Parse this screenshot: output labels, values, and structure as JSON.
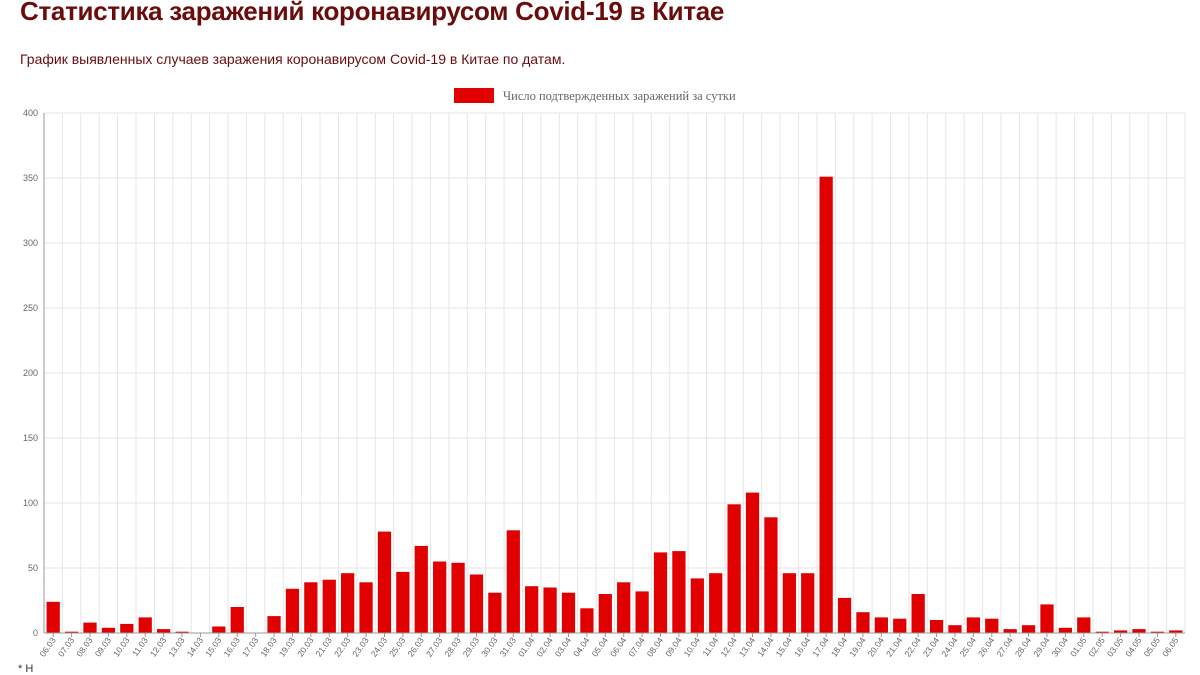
{
  "header": {
    "title": "Статистика заражений коронавирусом Covid-19 в Китае",
    "subtitle": "График выявленных случаев заражения коронавирусом Covid-19 в Китае по датам."
  },
  "footnote": "* Н",
  "colors": {
    "bar": "#e00000",
    "title": "#6b0c0c",
    "grid": "#e6e6e6",
    "axis": "#999999"
  },
  "chart_data": {
    "type": "bar",
    "title": "",
    "xlabel": "",
    "ylabel": "",
    "ylim": [
      0,
      400
    ],
    "yticks": [
      0,
      50,
      100,
      150,
      200,
      250,
      300,
      350,
      400
    ],
    "legend": {
      "label": "Число подтвержденных заражений за сутки",
      "position": "top-center"
    },
    "categories": [
      "06.03",
      "07.03",
      "08.03",
      "09.03",
      "10.03",
      "11.03",
      "12.03",
      "13.03",
      "14.03",
      "15.03",
      "16.03",
      "17.03",
      "18.03",
      "19.03",
      "20.03",
      "21.03",
      "22.03",
      "23.03",
      "24.03",
      "25.03",
      "26.03",
      "27.03",
      "28.03",
      "29.03",
      "30.03",
      "31.03",
      "01.04",
      "02.04",
      "03.04",
      "04.04",
      "05.04",
      "06.04",
      "07.04",
      "08.04",
      "09.04",
      "10.04",
      "11.04",
      "12.04",
      "13.04",
      "14.04",
      "15.04",
      "16.04",
      "17.04",
      "18.04",
      "19.04",
      "20.04",
      "21.04",
      "22.04",
      "23.04",
      "24.04",
      "25.04",
      "26.04",
      "27.04",
      "28.04",
      "29.04",
      "30.04",
      "01.05",
      "02.05",
      "03.05",
      "04.05",
      "05.05",
      "06.05"
    ],
    "series": [
      {
        "name": "Число подтвержденных заражений за сутки",
        "values": [
          24,
          1,
          8,
          4,
          7,
          12,
          3,
          1,
          0,
          5,
          20,
          0,
          13,
          34,
          39,
          41,
          46,
          39,
          78,
          47,
          67,
          55,
          54,
          45,
          31,
          79,
          36,
          35,
          31,
          19,
          30,
          39,
          32,
          62,
          63,
          42,
          46,
          99,
          108,
          89,
          46,
          46,
          351,
          27,
          16,
          12,
          11,
          30,
          10,
          6,
          12,
          11,
          3,
          6,
          22,
          4,
          12,
          1,
          2,
          3,
          1,
          2
        ]
      }
    ]
  }
}
